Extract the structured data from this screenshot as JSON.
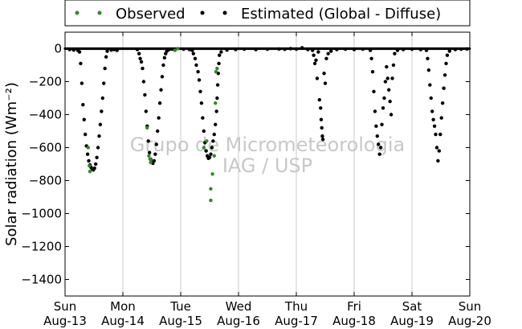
{
  "chart_data": {
    "type": "scatter",
    "title": "",
    "ylabel": "Solar radiation (Wm⁻²)",
    "ylim": [
      -1500,
      100
    ],
    "xlim": [
      0,
      7
    ],
    "yticks": [
      0,
      -200,
      -400,
      -600,
      -800,
      -1000,
      -1200,
      -1400
    ],
    "xticks": [
      {
        "x": 0,
        "day": "Sun",
        "date": "Aug-13"
      },
      {
        "x": 1,
        "day": "Mon",
        "date": "Aug-14"
      },
      {
        "x": 2,
        "day": "Tue",
        "date": "Aug-15"
      },
      {
        "x": 3,
        "day": "Wed",
        "date": "Aug-16"
      },
      {
        "x": 4,
        "day": "Thu",
        "date": "Aug-17"
      },
      {
        "x": 5,
        "day": "Fri",
        "date": "Aug-18"
      },
      {
        "x": 6,
        "day": "Sat",
        "date": "Aug-19"
      },
      {
        "x": 7,
        "day": "Sun",
        "date": "Aug-20"
      }
    ],
    "grid": "vertical",
    "legend": {
      "placement": "top-center, above plot",
      "entries": [
        "Observed",
        "Estimated (Global - Diffuse)"
      ]
    },
    "watermark": [
      "Grupo de Micrometeorologia",
      "IAG / USP"
    ],
    "series": [
      {
        "name": "Observed",
        "color": "#2e8b22",
        "points": [
          [
            0.4,
            -600
          ],
          [
            0.42,
            -710
          ],
          [
            0.43,
            -745
          ],
          [
            1.42,
            -480
          ],
          [
            1.45,
            -650
          ],
          [
            1.47,
            -670
          ],
          [
            1.48,
            -690
          ],
          [
            1.9,
            -10
          ],
          [
            1.95,
            0
          ],
          [
            2.4,
            -600
          ],
          [
            2.45,
            -560
          ],
          [
            2.52,
            -850
          ],
          [
            2.52,
            -920
          ],
          [
            2.55,
            -760
          ],
          [
            2.58,
            -650
          ],
          [
            2.6,
            -330
          ],
          [
            2.61,
            -140
          ],
          [
            2.63,
            -120
          ]
        ]
      },
      {
        "name": "Estimated (Global - Diffuse)",
        "color": "#000000",
        "points": [
          [
            0.08,
            -5
          ],
          [
            0.15,
            -8
          ],
          [
            0.22,
            -10
          ],
          [
            0.25,
            -20
          ],
          [
            0.27,
            -90
          ],
          [
            0.29,
            -210
          ],
          [
            0.31,
            -340
          ],
          [
            0.33,
            -430
          ],
          [
            0.35,
            -520
          ],
          [
            0.37,
            -590
          ],
          [
            0.39,
            -640
          ],
          [
            0.41,
            -680
          ],
          [
            0.43,
            -705
          ],
          [
            0.45,
            -720
          ],
          [
            0.47,
            -730
          ],
          [
            0.49,
            -735
          ],
          [
            0.51,
            -725
          ],
          [
            0.53,
            -700
          ],
          [
            0.55,
            -660
          ],
          [
            0.57,
            -600
          ],
          [
            0.59,
            -530
          ],
          [
            0.61,
            -460
          ],
          [
            0.63,
            -380
          ],
          [
            0.65,
            -300
          ],
          [
            0.67,
            -210
          ],
          [
            0.69,
            -120
          ],
          [
            0.71,
            -50
          ],
          [
            0.73,
            -15
          ],
          [
            0.8,
            -8
          ],
          [
            0.85,
            -5
          ],
          [
            0.9,
            -10
          ],
          [
            1.25,
            -5
          ],
          [
            1.28,
            -30
          ],
          [
            1.3,
            -60
          ],
          [
            1.32,
            -80
          ],
          [
            1.34,
            -120
          ],
          [
            1.36,
            -200
          ],
          [
            1.38,
            -280
          ],
          [
            1.4,
            -380
          ],
          [
            1.42,
            -470
          ],
          [
            1.44,
            -560
          ],
          [
            1.46,
            -630
          ],
          [
            1.48,
            -670
          ],
          [
            1.5,
            -690
          ],
          [
            1.52,
            -695
          ],
          [
            1.54,
            -680
          ],
          [
            1.56,
            -640
          ],
          [
            1.58,
            -580
          ],
          [
            1.6,
            -500
          ],
          [
            1.62,
            -420
          ],
          [
            1.64,
            -330
          ],
          [
            1.66,
            -250
          ],
          [
            1.68,
            -170
          ],
          [
            1.7,
            -100
          ],
          [
            1.72,
            -55
          ],
          [
            1.74,
            -30
          ],
          [
            1.76,
            -15
          ],
          [
            1.8,
            -5
          ],
          [
            1.85,
            -3
          ],
          [
            2.05,
            -3
          ],
          [
            2.15,
            -5
          ],
          [
            2.2,
            -10
          ],
          [
            2.22,
            -30
          ],
          [
            2.25,
            -60
          ],
          [
            2.27,
            -100
          ],
          [
            2.3,
            -140
          ],
          [
            2.32,
            -190
          ],
          [
            2.34,
            -260
          ],
          [
            2.36,
            -330
          ],
          [
            2.38,
            -420
          ],
          [
            2.4,
            -500
          ],
          [
            2.42,
            -570
          ],
          [
            2.44,
            -620
          ],
          [
            2.46,
            -650
          ],
          [
            2.48,
            -665
          ],
          [
            2.5,
            -660
          ],
          [
            2.52,
            -640
          ],
          [
            2.54,
            -600
          ],
          [
            2.56,
            -560
          ],
          [
            2.58,
            -520
          ],
          [
            2.6,
            -460
          ],
          [
            2.62,
            -380
          ],
          [
            2.63,
            -300
          ],
          [
            2.64,
            -220
          ],
          [
            2.65,
            -150
          ],
          [
            2.66,
            -90
          ],
          [
            2.67,
            -40
          ],
          [
            2.7,
            -20
          ],
          [
            2.8,
            -8
          ],
          [
            2.95,
            -5
          ],
          [
            3.1,
            -3
          ],
          [
            3.3,
            -5
          ],
          [
            3.5,
            -3
          ],
          [
            3.7,
            -2
          ],
          [
            3.8,
            -4
          ],
          [
            3.9,
            0
          ],
          [
            4.0,
            -3
          ],
          [
            4.1,
            5
          ],
          [
            4.2,
            -5
          ],
          [
            4.28,
            -10
          ],
          [
            4.3,
            -40
          ],
          [
            4.32,
            -90
          ],
          [
            4.34,
            -70
          ],
          [
            4.36,
            -180
          ],
          [
            4.38,
            -20
          ],
          [
            4.4,
            -310
          ],
          [
            4.42,
            -360
          ],
          [
            4.43,
            -430
          ],
          [
            4.44,
            -480
          ],
          [
            4.45,
            -530
          ],
          [
            4.46,
            -550
          ],
          [
            4.48,
            -150
          ],
          [
            4.5,
            -210
          ],
          [
            4.52,
            -60
          ],
          [
            4.55,
            -30
          ],
          [
            4.6,
            -15
          ],
          [
            4.7,
            -5
          ],
          [
            4.85,
            -3
          ],
          [
            5.0,
            -5
          ],
          [
            5.15,
            -3
          ],
          [
            5.28,
            -10
          ],
          [
            5.3,
            -60
          ],
          [
            5.32,
            -140
          ],
          [
            5.34,
            -260
          ],
          [
            5.36,
            -380
          ],
          [
            5.38,
            -470
          ],
          [
            5.4,
            -530
          ],
          [
            5.42,
            -580
          ],
          [
            5.44,
            -640
          ],
          [
            5.46,
            -600
          ],
          [
            5.48,
            -460
          ],
          [
            5.5,
            -360
          ],
          [
            5.52,
            -300
          ],
          [
            5.54,
            -200
          ],
          [
            5.56,
            -110
          ],
          [
            5.58,
            -180
          ],
          [
            5.6,
            -250
          ],
          [
            5.62,
            -320
          ],
          [
            5.64,
            -400
          ],
          [
            5.66,
            -180
          ],
          [
            5.68,
            -100
          ],
          [
            5.7,
            -30
          ],
          [
            5.75,
            -10
          ],
          [
            5.85,
            -5
          ],
          [
            6.0,
            -3
          ],
          [
            6.15,
            -5
          ],
          [
            6.25,
            -10
          ],
          [
            6.27,
            -60
          ],
          [
            6.29,
            -130
          ],
          [
            6.31,
            -220
          ],
          [
            6.33,
            -300
          ],
          [
            6.35,
            -380
          ],
          [
            6.37,
            -430
          ],
          [
            6.39,
            -470
          ],
          [
            6.41,
            -520
          ],
          [
            6.43,
            -600
          ],
          [
            6.45,
            -680
          ],
          [
            6.47,
            -620
          ],
          [
            6.49,
            -520
          ],
          [
            6.51,
            -420
          ],
          [
            6.53,
            -330
          ],
          [
            6.55,
            -240
          ],
          [
            6.57,
            -160
          ],
          [
            6.59,
            -90
          ],
          [
            6.61,
            -40
          ],
          [
            6.65,
            -15
          ],
          [
            6.75,
            -5
          ],
          [
            6.85,
            -3
          ],
          [
            6.95,
            -2
          ]
        ]
      }
    ]
  }
}
